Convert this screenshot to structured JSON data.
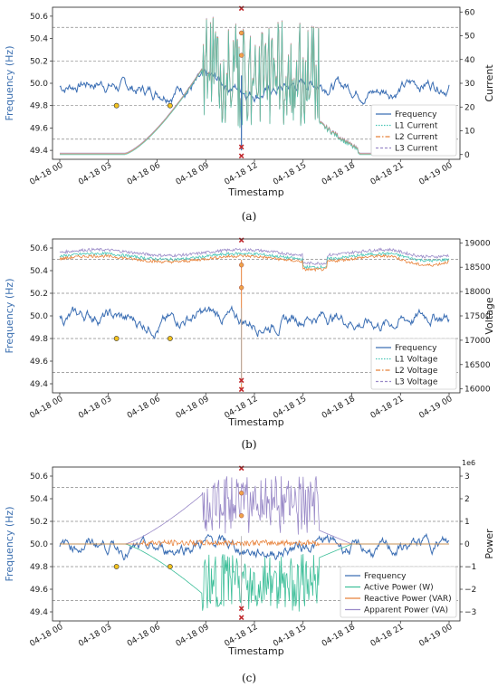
{
  "chart_data": [
    {
      "id": "a",
      "type": "line",
      "caption": "(a)",
      "xlabel": "Timestamp",
      "ylabel_left": "Frequency (Hz)",
      "ylabel_right": "Current",
      "x_ticks": [
        "04-18 00",
        "04-18 03",
        "04-18 06",
        "04-18 09",
        "04-18 12",
        "04-18 15",
        "04-18 18",
        "04-18 21",
        "04-19 00"
      ],
      "y_left_ticks": [
        "49.4",
        "49.6",
        "49.8",
        "50.0",
        "50.2",
        "50.4",
        "50.6"
      ],
      "y_right_ticks": [
        "0",
        "10",
        "20",
        "30",
        "40",
        "50",
        "60"
      ],
      "ylim_left": [
        49.32,
        50.68
      ],
      "ylim_right": [
        -2,
        62
      ],
      "right_exponent": "",
      "legend": [
        "Frequency",
        "L1 Current",
        "L2 Current",
        "L3 Current"
      ],
      "legend_position": "lower-right",
      "grid": "dashed horizontal at 49.5, 49.8, 50.2, 50.5",
      "colors": {
        "frequency": "#3c6fb4",
        "l1": "#49c6b6",
        "l2": "#e8823a",
        "l3": "#9a8ac8"
      },
      "markers": {
        "yellow_hours": [
          3.5,
          6.8
        ],
        "red_hours_approx": 11.2
      }
    },
    {
      "id": "b",
      "type": "line",
      "caption": "(b)",
      "xlabel": "Timestamp",
      "ylabel_left": "Frequency (Hz)",
      "ylabel_right": "Voltage",
      "x_ticks": [
        "04-18 00",
        "04-18 03",
        "04-18 06",
        "04-18 09",
        "04-18 12",
        "04-18 15",
        "04-18 18",
        "04-18 21",
        "04-19 00"
      ],
      "y_left_ticks": [
        "49.4",
        "49.6",
        "49.8",
        "50.0",
        "50.2",
        "50.4",
        "50.6"
      ],
      "y_right_ticks": [
        "16000",
        "16500",
        "17000",
        "17500",
        "18000",
        "18500",
        "19000"
      ],
      "ylim_left": [
        49.32,
        50.68
      ],
      "ylim_right": [
        15920,
        19080
      ],
      "right_exponent": "",
      "legend": [
        "Frequency",
        "L1 Voltage",
        "L2 Voltage",
        "L3 Voltage"
      ],
      "legend_position": "lower-right",
      "grid": "dashed horizontal at 49.5, 49.8, 50.2, 50.5",
      "colors": {
        "frequency": "#3c6fb4",
        "l1": "#49c6b6",
        "l2": "#e8823a",
        "l3": "#9a8ac8"
      },
      "markers": {
        "yellow_hours": [
          3.5,
          6.8
        ],
        "red_hours_approx": 11.2
      }
    },
    {
      "id": "c",
      "type": "line",
      "caption": "(c)",
      "xlabel": "Timestamp",
      "ylabel_left": "Frequency (Hz)",
      "ylabel_right": "Power",
      "x_ticks": [
        "04-18 00",
        "04-18 03",
        "04-18 06",
        "04-18 09",
        "04-18 12",
        "04-18 15",
        "04-18 18",
        "04-18 21",
        "04-19 00"
      ],
      "y_left_ticks": [
        "49.4",
        "49.6",
        "49.8",
        "50.0",
        "50.2",
        "50.4",
        "50.6"
      ],
      "y_right_ticks": [
        "−3",
        "−2",
        "−1",
        "0",
        "1",
        "2",
        "3"
      ],
      "ylim_left": [
        49.32,
        50.68
      ],
      "ylim_right": [
        -3.4,
        3.4
      ],
      "right_exponent": "1e6",
      "legend": [
        "Frequency",
        "Active Power (W)",
        "Reactive Power (VAR)",
        "Apparent Power (VA)"
      ],
      "legend_position": "lower-right",
      "grid": "dashed horizontal at 49.5, 49.8, 50.2, 50.5",
      "colors": {
        "frequency": "#3c6fb4",
        "active": "#3fbf9a",
        "reactive": "#e8823a",
        "apparent": "#9a8ac8"
      },
      "markers": {
        "yellow_hours": [
          3.5,
          6.8
        ],
        "red_hours_approx": 11.2
      }
    }
  ]
}
